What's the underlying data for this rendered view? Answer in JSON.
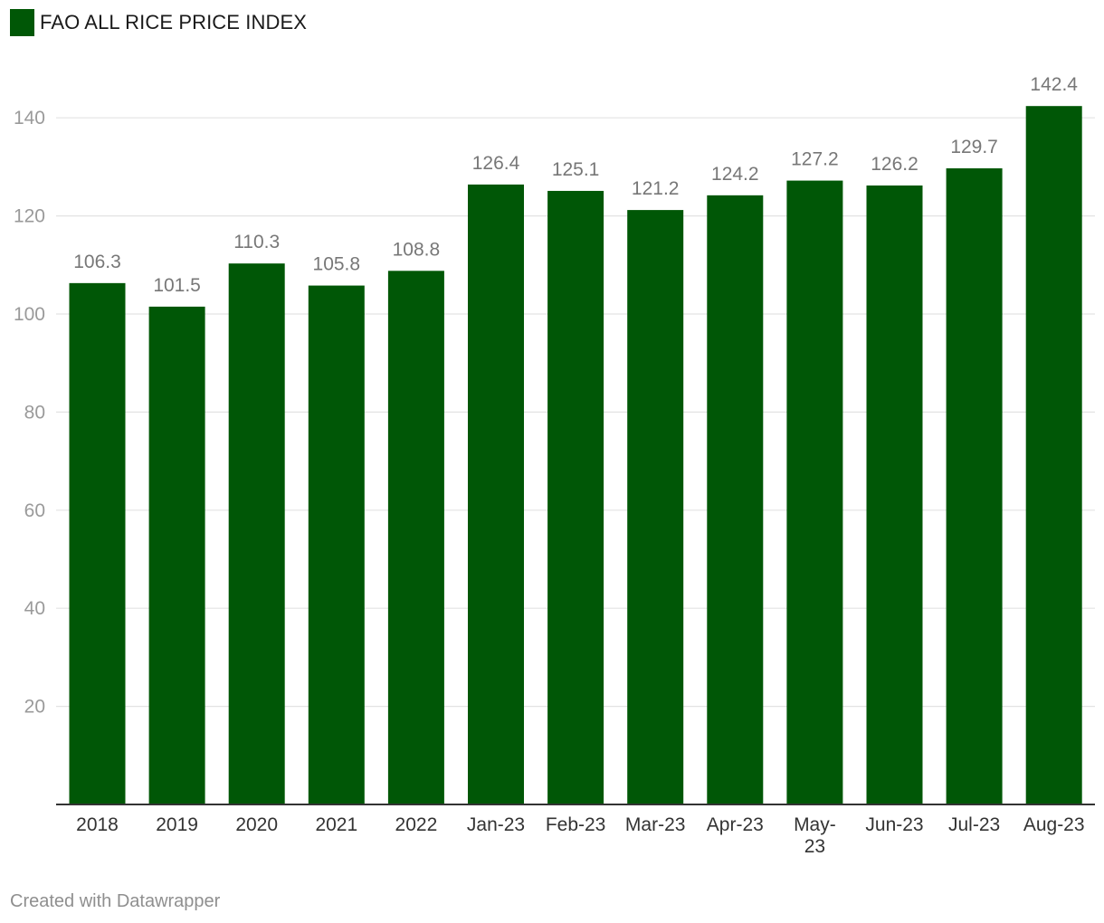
{
  "legend": {
    "label": "FAO ALL RICE PRICE INDEX",
    "color": "#005706"
  },
  "footer": {
    "text": "Created with Datawrapper"
  },
  "chart_data": {
    "type": "bar",
    "title": "",
    "xlabel": "",
    "ylabel": "",
    "categories": [
      "2018",
      "2019",
      "2020",
      "2021",
      "2022",
      "Jan-23",
      "Feb-23",
      "Mar-23",
      "Apr-23",
      "May-23",
      "Jun-23",
      "Jul-23",
      "Aug-23"
    ],
    "series": [
      {
        "name": "FAO ALL RICE PRICE INDEX",
        "color": "#005706",
        "values": [
          106.3,
          101.5,
          110.3,
          105.8,
          108.8,
          126.4,
          125.1,
          121.2,
          124.2,
          127.2,
          126.2,
          129.7,
          142.4
        ],
        "labels": [
          "106.3",
          "101.5",
          "110.3",
          "105.8",
          "108.8",
          "126.4",
          "125.1",
          "121.2",
          "124.2",
          "127.2",
          "126.2",
          "129.7",
          "142.4"
        ]
      }
    ],
    "yticks": [
      20,
      40,
      60,
      80,
      100,
      120,
      140
    ],
    "ytick_labels": [
      "20",
      "40",
      "60",
      "80",
      "100",
      "120",
      "140"
    ],
    "ylim": [
      0,
      150
    ],
    "grid": true,
    "legend_position": "top-left"
  }
}
